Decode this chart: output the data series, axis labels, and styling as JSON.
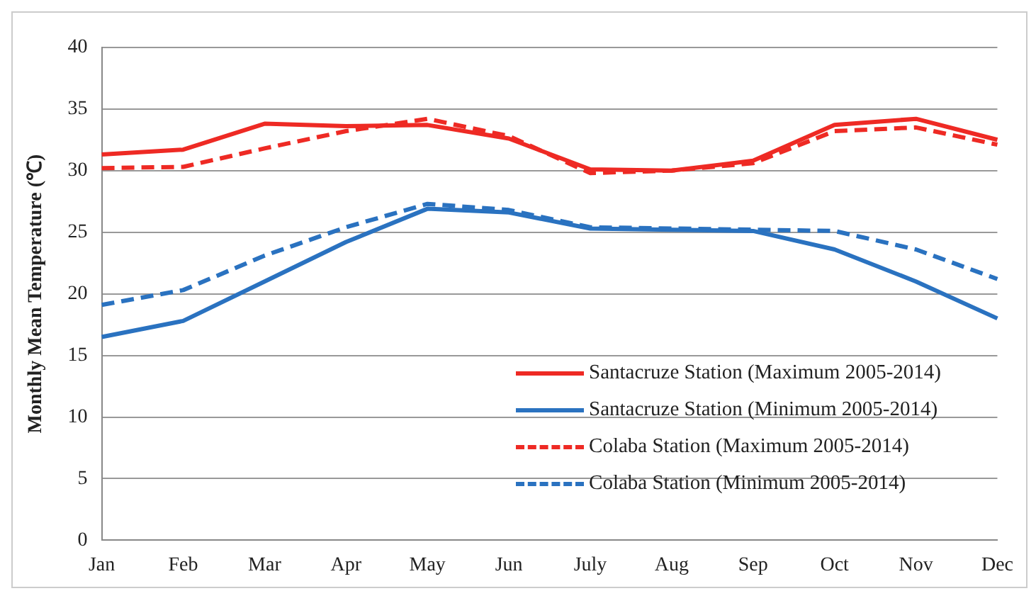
{
  "chart_data": {
    "type": "line",
    "ylabel": "Monthly Mean Temperature (℃)",
    "categories": [
      "Jan",
      "Feb",
      "Mar",
      "Apr",
      "May",
      "Jun",
      "July",
      "Aug",
      "Sep",
      "Oct",
      "Nov",
      "Dec"
    ],
    "series": [
      {
        "name": "Santacruze Station (Maximum 2005-2014)",
        "color": "#ee2a24",
        "line_style": "solid",
        "values": [
          31.3,
          31.7,
          33.8,
          33.6,
          33.7,
          32.6,
          30.1,
          30.0,
          30.8,
          33.7,
          34.2,
          32.5
        ]
      },
      {
        "name": "Santacruze Station (Minimum 2005-2014)",
        "color": "#2a72c0",
        "line_style": "solid",
        "values": [
          16.5,
          17.8,
          21.0,
          24.2,
          26.9,
          26.6,
          25.3,
          25.2,
          25.1,
          23.6,
          21.0,
          18.0
        ]
      },
      {
        "name": "Colaba Station (Maximum 2005-2014)",
        "color": "#ee2a24",
        "line_style": "dashed",
        "values": [
          30.2,
          30.3,
          31.8,
          33.2,
          34.2,
          32.8,
          29.8,
          30.0,
          30.6,
          33.2,
          33.5,
          32.1
        ]
      },
      {
        "name": "Colaba Station (Minimum 2005-2014)",
        "color": "#2a72c0",
        "line_style": "dashed",
        "values": [
          19.1,
          20.3,
          23.1,
          25.4,
          27.3,
          26.8,
          25.4,
          25.3,
          25.2,
          25.1,
          23.6,
          21.2
        ]
      }
    ],
    "ylim": [
      0,
      40
    ],
    "yticks": [
      0,
      5,
      10,
      15,
      20,
      25,
      30,
      35,
      40
    ],
    "grid": "y",
    "legend": "bottom right",
    "marker": "none"
  }
}
